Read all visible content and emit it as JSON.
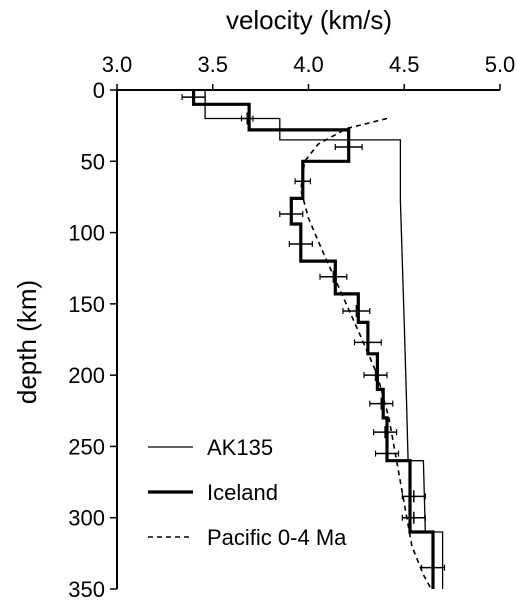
{
  "chart_data": {
    "type": "line",
    "xlabel": "velocity (km/s)",
    "ylabel": "depth (km)",
    "xlim": [
      3.0,
      5.0
    ],
    "ylim": [
      350,
      0
    ],
    "x_axis_position": "top",
    "x_ticks": [
      "3.0",
      "3.5",
      "4.0",
      "4.5",
      "5.0"
    ],
    "y_ticks": [
      "0",
      "50",
      "100",
      "150",
      "200",
      "250",
      "300",
      "350"
    ],
    "legend_position": "bottom-left",
    "series": [
      {
        "name": "AK135",
        "style": "thin-solid",
        "points": [
          [
            3.46,
            0
          ],
          [
            3.46,
            20
          ],
          [
            3.85,
            20
          ],
          [
            3.85,
            35
          ],
          [
            4.48,
            35
          ],
          [
            4.48,
            77.5
          ],
          [
            4.49,
            120
          ],
          [
            4.5,
            165
          ],
          [
            4.51,
            210
          ],
          [
            4.52,
            260
          ],
          [
            4.6,
            260
          ],
          [
            4.61,
            310
          ],
          [
            4.7,
            310
          ],
          [
            4.7,
            350
          ]
        ]
      },
      {
        "name": "Iceland",
        "style": "thick-solid",
        "points": [
          [
            3.4,
            0
          ],
          [
            3.4,
            10
          ],
          [
            3.69,
            10
          ],
          [
            3.69,
            28
          ],
          [
            4.21,
            28
          ],
          [
            4.21,
            50
          ],
          [
            3.97,
            50
          ],
          [
            3.97,
            76
          ],
          [
            3.91,
            76
          ],
          [
            3.91,
            94
          ],
          [
            3.96,
            94
          ],
          [
            3.96,
            120
          ],
          [
            4.14,
            120
          ],
          [
            4.14,
            143
          ],
          [
            4.26,
            143
          ],
          [
            4.26,
            163
          ],
          [
            4.31,
            163
          ],
          [
            4.31,
            185
          ],
          [
            4.36,
            185
          ],
          [
            4.36,
            210
          ],
          [
            4.39,
            210
          ],
          [
            4.39,
            230
          ],
          [
            4.41,
            230
          ],
          [
            4.41,
            260
          ],
          [
            4.53,
            260
          ],
          [
            4.53,
            310
          ],
          [
            4.65,
            310
          ],
          [
            4.65,
            350
          ]
        ]
      },
      {
        "name": "Pacific 0-4 Ma",
        "style": "dashed",
        "points": [
          [
            4.41,
            20
          ],
          [
            4.2,
            27
          ],
          [
            4.05,
            38
          ],
          [
            3.98,
            50
          ],
          [
            3.96,
            70
          ],
          [
            4.0,
            90
          ],
          [
            4.08,
            115
          ],
          [
            4.18,
            145
          ],
          [
            4.28,
            175
          ],
          [
            4.36,
            200
          ],
          [
            4.42,
            230
          ],
          [
            4.46,
            260
          ],
          [
            4.5,
            290
          ],
          [
            4.54,
            320
          ],
          [
            4.6,
            340
          ],
          [
            4.64,
            350
          ]
        ]
      }
    ],
    "error_bars": [
      {
        "x": 3.4,
        "y": 5,
        "dx": 0.06
      },
      {
        "x": 3.68,
        "y": 20,
        "dx": 0.03
      },
      {
        "x": 4.21,
        "y": 40,
        "dx": 0.07
      },
      {
        "x": 3.97,
        "y": 64,
        "dx": 0.04
      },
      {
        "x": 3.91,
        "y": 87,
        "dx": 0.06
      },
      {
        "x": 3.96,
        "y": 108,
        "dx": 0.06
      },
      {
        "x": 4.13,
        "y": 131,
        "dx": 0.07
      },
      {
        "x": 4.25,
        "y": 155,
        "dx": 0.07
      },
      {
        "x": 4.31,
        "y": 177,
        "dx": 0.07
      },
      {
        "x": 4.35,
        "y": 200,
        "dx": 0.06
      },
      {
        "x": 4.38,
        "y": 220,
        "dx": 0.06
      },
      {
        "x": 4.4,
        "y": 240,
        "dx": 0.06
      },
      {
        "x": 4.41,
        "y": 255,
        "dx": 0.06
      },
      {
        "x": 4.55,
        "y": 285,
        "dx": 0.06
      },
      {
        "x": 4.55,
        "y": 300,
        "dx": 0.06
      },
      {
        "x": 4.65,
        "y": 335,
        "dx": 0.06
      }
    ]
  }
}
